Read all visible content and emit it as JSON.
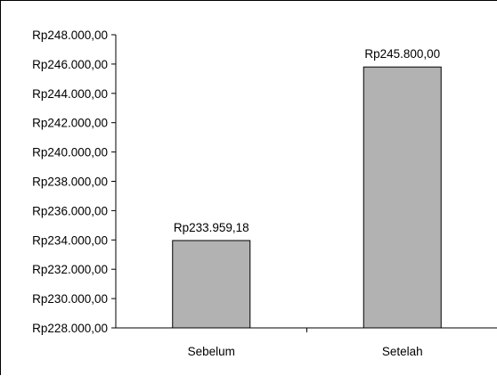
{
  "chart_data": {
    "type": "bar",
    "categories": [
      "Sebelum",
      "Setelah"
    ],
    "values": [
      233959.18,
      245800.0
    ],
    "data_labels": [
      "Rp233.959,18",
      "Rp245.800,00"
    ],
    "title": "",
    "xlabel": "",
    "ylabel": "",
    "ylim": [
      228000,
      248000
    ],
    "yticks": [
      {
        "value": 248000,
        "label": "Rp248.000,00"
      },
      {
        "value": 246000,
        "label": "Rp246.000,00"
      },
      {
        "value": 244000,
        "label": "Rp244.000,00"
      },
      {
        "value": 242000,
        "label": "Rp242.000,00"
      },
      {
        "value": 240000,
        "label": "Rp240.000,00"
      },
      {
        "value": 238000,
        "label": "Rp238.000,00"
      },
      {
        "value": 236000,
        "label": "Rp236.000,00"
      },
      {
        "value": 234000,
        "label": "Rp234.000,00"
      },
      {
        "value": 232000,
        "label": "Rp232.000,00"
      },
      {
        "value": 230000,
        "label": "Rp230.000,00"
      },
      {
        "value": 228000,
        "label": "Rp228.000,00"
      }
    ],
    "grid": false,
    "bar_color": "#b2b2b2",
    "bar_edge_color": "#000000"
  }
}
